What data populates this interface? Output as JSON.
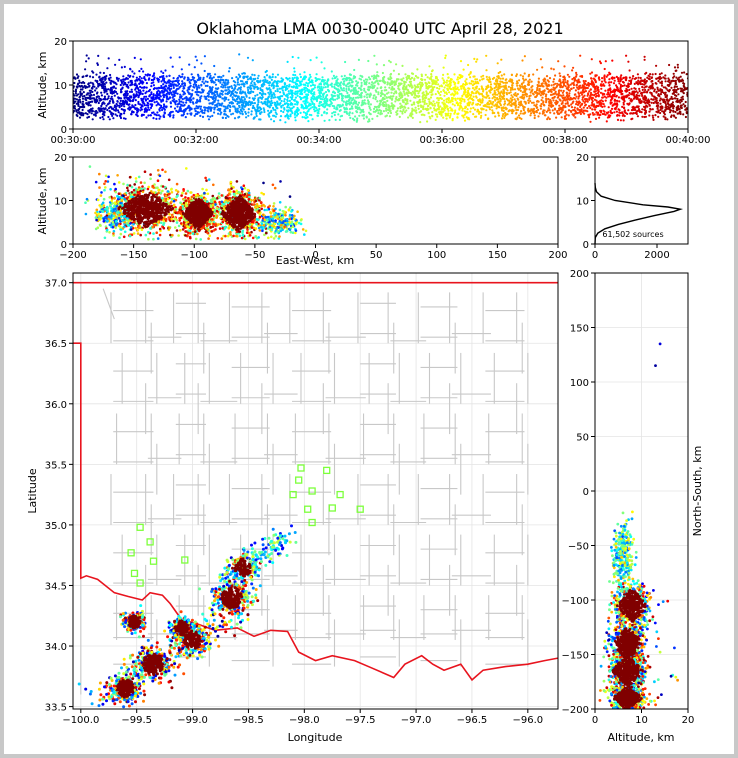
{
  "title": "Oklahoma LMA 0030-0040 UTC April 28, 2021",
  "sources_label": "61,502 sources",
  "colors": {
    "state_border": "#e8141e",
    "county_lines": "#c8c8c8",
    "stations": "#7dff3c",
    "profile": "#000000"
  },
  "chart_data": [
    {
      "id": "time-altitude",
      "type": "scatter",
      "title": "",
      "xlabel": "",
      "ylabel": "Altitude, km",
      "xticks": [
        "00:30:00",
        "00:32:00",
        "00:34:00",
        "00:36:00",
        "00:38:00",
        "00:40:00"
      ],
      "xlim_minutes": [
        0,
        10
      ],
      "ylim": [
        0,
        20
      ],
      "yticks": [
        0,
        10,
        20
      ],
      "colormap": "jet (time)",
      "density": [
        {
          "t": 0.0,
          "alt_core": [
            3,
            12
          ],
          "alt_spread": [
            1.5,
            17
          ]
        },
        {
          "t": 5.0,
          "alt_core": [
            3,
            12
          ],
          "alt_spread": [
            1.5,
            17
          ]
        },
        {
          "t": 10.0,
          "alt_core": [
            3,
            12
          ],
          "alt_spread": [
            1.5,
            17
          ]
        }
      ]
    },
    {
      "id": "eastwest-altitude",
      "type": "scatter",
      "xlabel": "East-West, km",
      "ylabel": "Altitude, km",
      "xlim": [
        -200,
        200
      ],
      "xticks": [
        -200,
        -150,
        -100,
        -50,
        0,
        50,
        100,
        150,
        200
      ],
      "ylim": [
        0,
        20
      ],
      "yticks": [
        0,
        10,
        20
      ],
      "clusters": [
        {
          "x": -140,
          "alt": 8,
          "rx": 22,
          "ry": 4
        },
        {
          "x": -97,
          "alt": 7,
          "rx": 12,
          "ry": 3.5
        },
        {
          "x": -63,
          "alt": 7,
          "rx": 14,
          "ry": 4
        },
        {
          "x": -165,
          "alt": 7,
          "rx": 15,
          "ry": 3
        },
        {
          "x": -30,
          "alt": 5,
          "rx": 15,
          "ry": 2.5
        }
      ]
    },
    {
      "id": "altitude-histogram",
      "type": "line",
      "xlim": [
        0,
        3000
      ],
      "xticks": [
        0,
        2000
      ],
      "ylim": [
        0,
        20
      ],
      "yticks": [
        0,
        10,
        20
      ],
      "profile": [
        {
          "alt": 0.0,
          "count": 0
        },
        {
          "alt": 1.5,
          "count": 10
        },
        {
          "alt": 2.5,
          "count": 90
        },
        {
          "alt": 3.5,
          "count": 320
        },
        {
          "alt": 4.5,
          "count": 750
        },
        {
          "alt": 5.5,
          "count": 1300
        },
        {
          "alt": 6.5,
          "count": 1900
        },
        {
          "alt": 7.5,
          "count": 2550
        },
        {
          "alt": 8.0,
          "count": 2750
        },
        {
          "alt": 8.5,
          "count": 2350
        },
        {
          "alt": 9.0,
          "count": 1550
        },
        {
          "alt": 10.0,
          "count": 650
        },
        {
          "alt": 11.0,
          "count": 200
        },
        {
          "alt": 12.0,
          "count": 50
        },
        {
          "alt": 13.0,
          "count": 10
        },
        {
          "alt": 14.0,
          "count": 0
        }
      ]
    },
    {
      "id": "plan-view",
      "type": "scatter",
      "xlabel": "Longitude",
      "ylabel": "Latitude",
      "xlim": [
        -100.07,
        -95.73
      ],
      "xticks": [
        -100.0,
        -99.5,
        -99.0,
        -98.5,
        -98.0,
        -97.5,
        -97.0,
        -96.5,
        -96.0
      ],
      "ylim": [
        33.48,
        37.08
      ],
      "yticks": [
        33.5,
        34.0,
        34.5,
        35.0,
        35.5,
        36.0,
        36.5,
        37.0
      ],
      "storms": [
        {
          "lon": -99.52,
          "lat": 34.2,
          "r": 0.07,
          "n": 220
        },
        {
          "lon": -99.6,
          "lat": 33.65,
          "r": 0.1,
          "n": 300
        },
        {
          "lon": -99.35,
          "lat": 33.85,
          "r": 0.12,
          "n": 320
        },
        {
          "lon": -99.0,
          "lat": 34.05,
          "r": 0.1,
          "n": 300
        },
        {
          "lon": -98.65,
          "lat": 34.4,
          "r": 0.12,
          "n": 340
        },
        {
          "lon": -99.1,
          "lat": 34.15,
          "r": 0.08,
          "n": 180
        },
        {
          "lon": -98.55,
          "lat": 34.65,
          "r": 0.1,
          "n": 150
        }
      ],
      "stations": [
        [
          -98.03,
          35.47
        ],
        [
          -97.8,
          35.45
        ],
        [
          -98.05,
          35.37
        ],
        [
          -97.93,
          35.28
        ],
        [
          -97.68,
          35.25
        ],
        [
          -98.1,
          35.25
        ],
        [
          -97.97,
          35.13
        ],
        [
          -97.75,
          35.14
        ],
        [
          -97.5,
          35.13
        ],
        [
          -97.93,
          35.02
        ],
        [
          -99.47,
          34.98
        ],
        [
          -99.38,
          34.86
        ],
        [
          -99.55,
          34.77
        ],
        [
          -99.35,
          34.7
        ],
        [
          -99.07,
          34.71
        ],
        [
          -99.52,
          34.6
        ],
        [
          -99.47,
          34.52
        ]
      ]
    },
    {
      "id": "altitude-northsouth",
      "type": "scatter",
      "xlabel": "Altitude, km",
      "ylabel": "North-South, km",
      "xlim": [
        0,
        20
      ],
      "xticks": [
        0,
        10,
        20
      ],
      "ylim": [
        -200,
        200
      ],
      "yticks": [
        -200,
        -150,
        -100,
        -50,
        0,
        50,
        100,
        150,
        200
      ],
      "clusters": [
        {
          "alt": 8,
          "y": -105,
          "ra": 3,
          "ry": 15
        },
        {
          "alt": 7,
          "y": -140,
          "ra": 3,
          "ry": 15
        },
        {
          "alt": 7,
          "y": -165,
          "ra": 3,
          "ry": 15
        },
        {
          "alt": 7,
          "y": -190,
          "ra": 3,
          "ry": 10
        },
        {
          "alt": 6,
          "y": -60,
          "ra": 2,
          "ry": 25
        }
      ]
    }
  ]
}
